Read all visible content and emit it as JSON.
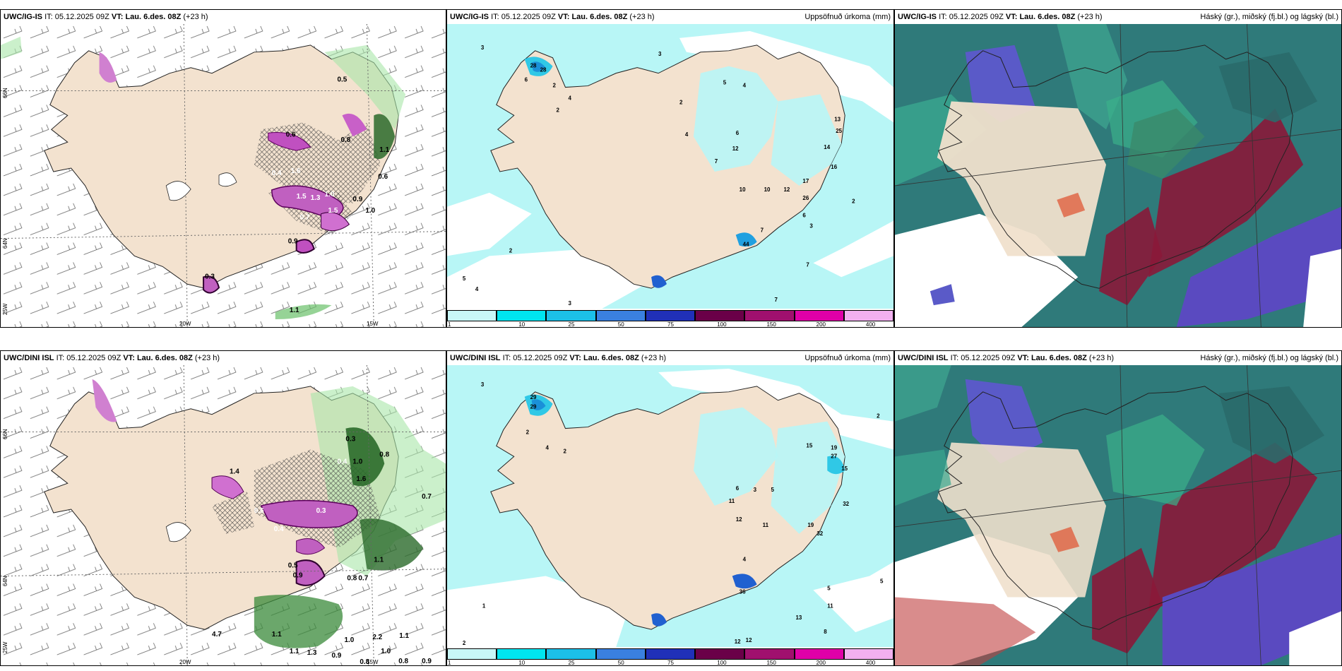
{
  "panels": {
    "p1": {
      "model": "UWC/IG-IS",
      "it_label": "IT:",
      "it": "05.12.2025 09Z",
      "vt_label": "VT:",
      "vt": "Lau. 6.des. 08Z",
      "lead": "(+23 h)"
    },
    "p2": {
      "model": "UWC/IG-IS",
      "it_label": "IT:",
      "it": "05.12.2025 09Z",
      "vt_label": "VT:",
      "vt": "Lau. 6.des. 08Z",
      "lead": "(+23 h)",
      "right": "Uppsöfnuð úrkoma (mm)"
    },
    "p3": {
      "model": "UWC/IG-IS",
      "it_label": "IT:",
      "it": "05.12.2025 09Z",
      "vt_label": "VT:",
      "vt": "Lau. 6.des. 08Z",
      "lead": "(+23 h)",
      "right": "Háský (gr.), miðský (fj.bl.) og lágský (bl.)"
    },
    "p4": {
      "model": "UWC/DINI ISL",
      "it_label": "IT:",
      "it": "05.12.2025 09Z",
      "vt_label": "VT:",
      "vt": "Lau. 6.des. 08Z",
      "lead": "(+23 h)"
    },
    "p5": {
      "model": "UWC/DINI ISL",
      "it_label": "IT:",
      "it": "05.12.2025 09Z",
      "vt_label": "VT:",
      "vt": "Lau. 6.des. 08Z",
      "lead": "(+23 h)",
      "right": "Uppsöfnuð úrkoma (mm)"
    },
    "p6": {
      "model": "UWC/DINI ISL",
      "it_label": "IT:",
      "it": "05.12.2025 09Z",
      "vt_label": "VT:",
      "vt": "Lau. 6.des. 08Z",
      "lead": "(+23 h)",
      "right": "Háský (gr.), miðský (fj.bl.) og lágský (bl.)"
    }
  },
  "axes": {
    "lon_20": "20W",
    "lon_15": "15W",
    "lat_66": "66N",
    "lat_64": "64N",
    "lat_25": "25W",
    "lat_r66": "66N",
    "lat_r64": "64N"
  },
  "colorbar": {
    "ticks": [
      "1",
      "10",
      "25",
      "50",
      "75",
      "100",
      "150",
      "200",
      "400"
    ],
    "colors": [
      "#c8f7f7",
      "#00e5f0",
      "#1cc0e8",
      "#3a80e0",
      "#2030b8",
      "#6a0048",
      "#a0106e",
      "#e000a8",
      "#f2b0f0"
    ]
  },
  "labels": {
    "top_left": [
      "0.5",
      "0.6",
      "0.8",
      "1.0",
      "1.3",
      "0.9",
      "1.5",
      "0.7",
      "0.4",
      "0.6",
      "1.1",
      "1.6",
      "1.0",
      "0.9",
      "0.3",
      "1.1",
      "1.5"
    ],
    "top_mid": [
      "3",
      "28",
      "28",
      "6",
      "2",
      "4",
      "2",
      "3",
      "5",
      "4",
      "2",
      "4",
      "6",
      "12",
      "7",
      "10",
      "10",
      "12",
      "14",
      "17",
      "26",
      "13",
      "25",
      "16",
      "6",
      "2",
      "44",
      "7",
      "3",
      "5",
      "4",
      "7",
      "2",
      "3",
      "7"
    ],
    "bot_left": [
      "0.3",
      "0.4",
      "0.8",
      "1.6",
      "1.0",
      "0.6",
      "0.7",
      "0.4",
      "0.3",
      "0.5",
      "0.9",
      "0.8",
      "1.1",
      "0.7",
      "1.4",
      "4.7",
      "1.1",
      "1.0",
      "2.2",
      "1.1",
      "1.0",
      "0.8",
      "0.9",
      "1.1",
      "1.3",
      "0.9",
      "0.8"
    ],
    "bot_mid": [
      "3",
      "29",
      "29",
      "2",
      "4",
      "2",
      "6",
      "3",
      "5",
      "11",
      "12",
      "11",
      "15",
      "19",
      "27",
      "15",
      "32",
      "19",
      "32",
      "36",
      "4",
      "5",
      "11",
      "5",
      "13",
      "8",
      "12",
      "12",
      "2",
      "1",
      "2"
    ]
  }
}
